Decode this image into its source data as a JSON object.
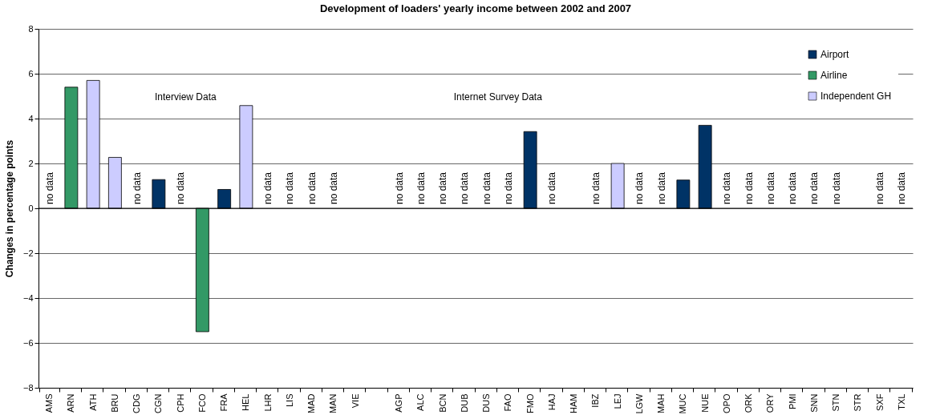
{
  "chart_data": {
    "type": "bar",
    "title": "Development of loaders' yearly income between 2002 and 2007",
    "ylabel": "Changes in percentage points",
    "categories": [
      "AMS",
      "ARN",
      "ATH",
      "BRU",
      "CDG",
      "CGN",
      "CPH",
      "FCO",
      "FRA",
      "HEL",
      "LHR",
      "LIS",
      "MAD",
      "MAN",
      "VIE",
      null,
      "AGP",
      "ALC",
      "BCN",
      "DUB",
      "DUS",
      "FAO",
      "FMO",
      "HAJ",
      "HAM",
      "IBZ",
      "LEJ",
      "LGW",
      "MAH",
      "MUC",
      "NUE",
      "OPO",
      "ORK",
      "ORY",
      "PMI",
      "SNN",
      "STN",
      "STR",
      "SXF",
      "TXL"
    ],
    "series": [
      {
        "name": "Airport",
        "color": "#003366",
        "values": [
          null,
          null,
          null,
          null,
          null,
          1.28,
          null,
          null,
          0.84,
          null,
          null,
          null,
          null,
          null,
          null,
          null,
          null,
          null,
          null,
          null,
          null,
          null,
          3.42,
          null,
          null,
          null,
          null,
          null,
          null,
          1.26,
          3.7,
          null,
          null,
          null,
          null,
          null,
          null,
          null,
          null,
          null
        ]
      },
      {
        "name": "Airline",
        "color": "#339966",
        "values": [
          null,
          5.4,
          null,
          null,
          null,
          null,
          null,
          -5.5,
          null,
          null,
          null,
          null,
          null,
          null,
          null,
          null,
          null,
          null,
          null,
          null,
          null,
          null,
          null,
          null,
          null,
          null,
          null,
          null,
          null,
          null,
          null,
          null,
          null,
          null,
          null,
          null,
          null,
          null,
          null,
          null
        ]
      },
      {
        "name": "Independent GH",
        "color": "#ccccff",
        "values": [
          null,
          null,
          5.7,
          2.27,
          null,
          null,
          null,
          null,
          null,
          4.58,
          null,
          null,
          null,
          null,
          null,
          null,
          null,
          null,
          null,
          null,
          null,
          null,
          null,
          null,
          null,
          null,
          2.0,
          null,
          null,
          null,
          null,
          null,
          null,
          null,
          null,
          null,
          null,
          null,
          null,
          null
        ]
      }
    ],
    "ylim": [
      -8,
      8
    ],
    "yticks": [
      -8,
      -6,
      -4,
      -2,
      0,
      2,
      4,
      6,
      8
    ],
    "grid": "y",
    "legend": "top right",
    "value_labels": [
      "no data",
      null,
      null,
      null,
      "no data",
      null,
      "no data",
      null,
      null,
      null,
      "no data",
      "no data",
      "no data",
      "no data",
      null,
      null,
      "no data",
      "no data",
      "no data",
      "no data",
      "no data",
      "no data",
      null,
      "no data",
      null,
      "no data",
      null,
      "no data",
      "no data",
      null,
      null,
      "no data",
      "no data",
      "no data",
      "no data",
      "no data",
      "no data",
      null,
      "no data",
      "no data"
    ],
    "annotations": [
      "Interview Data",
      "Internet Survey Data"
    ]
  }
}
